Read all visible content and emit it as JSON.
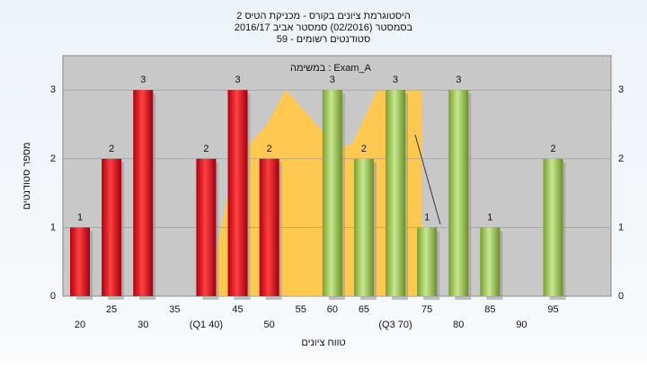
{
  "chart_data": {
    "type": "bar",
    "title": "היסטוגרמת ציונים בקורס - מכניקת הטיס 2",
    "subtitle": "בסמסטר  (02/2016)  סמסטר אביב 2016/17",
    "subtitle2": "סטודנטים רשומים - 59",
    "annotation": "במשימה : Exam_A",
    "y_label": "מספר סטודנטים",
    "x_label": "טווח ציונים",
    "categories": [
      "20",
      "25",
      "30",
      "35",
      "(Q1 40)",
      "45",
      "50",
      "55",
      "60",
      "65",
      "(Q3 70)",
      "75",
      "80",
      "85",
      "90",
      "95"
    ],
    "values": [
      1,
      2,
      3,
      0,
      2,
      3,
      2,
      0,
      3,
      2,
      3,
      1,
      3,
      1,
      0,
      2
    ],
    "colors": [
      "red",
      "red",
      "red",
      "red",
      "red",
      "red",
      "red",
      "red",
      "green",
      "green",
      "green",
      "green",
      "green",
      "green",
      "green",
      "green"
    ],
    "ylim": [
      0,
      3.5
    ],
    "yticks": [
      0,
      1,
      2,
      3
    ],
    "grid": true
  }
}
